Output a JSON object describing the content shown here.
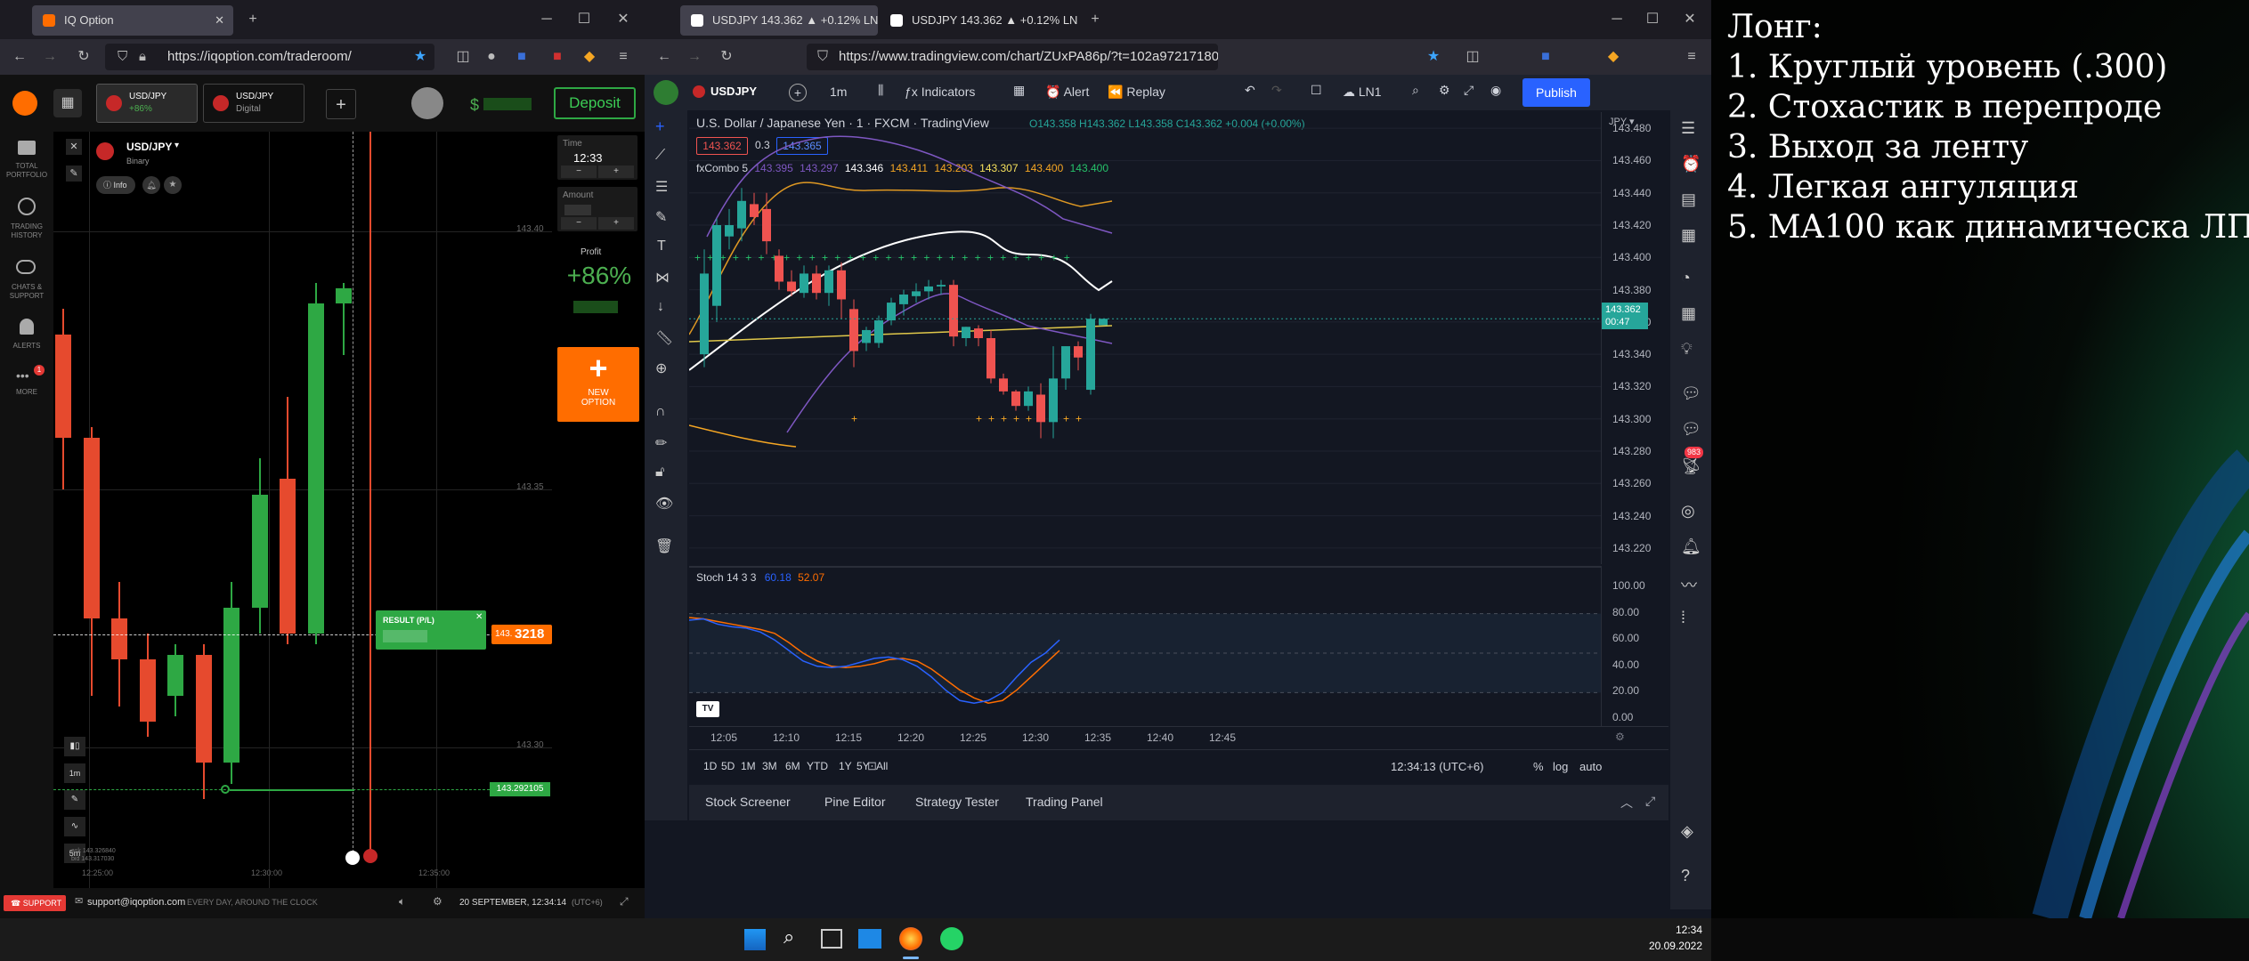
{
  "iq_window": {
    "tab_title": "IQ Option",
    "url": "https://iqoption.com/traderoom/",
    "asset_tabs": [
      {
        "name": "USD/JPY",
        "sub": "+86%"
      },
      {
        "name": "USD/JPY",
        "sub": "Digital"
      }
    ],
    "deposit_label": "Deposit",
    "sidebar": [
      {
        "label": "TOTAL PORTFOLIO",
        "icon": "briefcase-icon"
      },
      {
        "label": "TRADING HISTORY",
        "icon": "clock-icon"
      },
      {
        "label": "CHATS & SUPPORT",
        "icon": "chat-icon"
      },
      {
        "label": "ALERTS",
        "icon": "bell-icon"
      },
      {
        "label": "MORE",
        "icon": "dots-icon"
      }
    ],
    "more_badge": "1",
    "asset_title": "USD/JPY",
    "asset_type": "Binary",
    "info_label": "Info",
    "time_label": "Time",
    "time_value": "12:33",
    "amount_label": "Amount",
    "profit_label": "Profit",
    "profit_value": "+86%",
    "new_option_label": "NEW OPTION",
    "price_labels": [
      "143.40",
      "143.35",
      "143.30"
    ],
    "current_price_prefix": "143.",
    "current_price_big": "3218",
    "result_label": "RESULT (P/L)",
    "green_line_price": "143.292105",
    "ask_text": "ask 143.326840",
    "bid_text": "bid 143.317030",
    "time_axis": [
      "12:25:00",
      "12:30:00",
      "12:35:00"
    ],
    "timeframes": [
      "1m",
      "5m"
    ],
    "footer": {
      "support_label": "SUPPORT",
      "email": "support@iqoption.com",
      "slogan": "EVERY DAY, AROUND THE CLOCK",
      "datetime": "20 SEPTEMBER, 12:34:14",
      "tz": "(UTC+6)"
    },
    "candles": [
      {
        "o": 143.38,
        "h": 143.385,
        "l": 143.35,
        "c": 143.36
      },
      {
        "o": 143.36,
        "h": 143.362,
        "l": 143.31,
        "c": 143.325
      },
      {
        "o": 143.325,
        "h": 143.332,
        "l": 143.308,
        "c": 143.317
      },
      {
        "o": 143.317,
        "h": 143.322,
        "l": 143.302,
        "c": 143.305
      },
      {
        "o": 143.31,
        "h": 143.32,
        "l": 143.306,
        "c": 143.318
      },
      {
        "o": 143.318,
        "h": 143.32,
        "l": 143.29,
        "c": 143.297
      },
      {
        "o": 143.297,
        "h": 143.332,
        "l": 143.293,
        "c": 143.327
      },
      {
        "o": 143.327,
        "h": 143.356,
        "l": 143.322,
        "c": 143.349
      },
      {
        "o": 143.352,
        "h": 143.368,
        "l": 143.32,
        "c": 143.322
      },
      {
        "o": 143.322,
        "h": 143.39,
        "l": 143.32,
        "c": 143.386
      },
      {
        "o": 143.386,
        "h": 143.39,
        "l": 143.376,
        "c": 143.389
      }
    ]
  },
  "tv_window": {
    "tabs": [
      "USDJPY 143.362 ▲ +0.12% LN1",
      "USDJPY 143.362 ▲ +0.12% LN1"
    ],
    "url": "https://www.tradingview.com/chart/ZUxPA86p/?t=102a9721718050961f4fd03637f4d3%3Foffer_...",
    "symbol": "USDJPY",
    "interval": "1m",
    "indicators_label": "Indicators",
    "alert_label": "Alert",
    "replay_label": "Replay",
    "layout_label": "LN1",
    "publish_label": "Publish",
    "title": "U.S. Dollar / Japanese Yen · 1 · FXCM · TradingView",
    "ohlc": "O143.358 H143.362 L143.358 C143.362 +0.004 (+0.00%)",
    "bid": "143.362",
    "spread": "0.3",
    "ask": "143.365",
    "fxcombo_name": "fxCombo 5",
    "fxcombo_values": [
      "143.395",
      "143.297",
      "143.346",
      "143.411",
      "143.203",
      "143.307",
      "143.400",
      "143.400"
    ],
    "fxcombo_colors": [
      "#7e57c2",
      "#7e57c2",
      "#ffffff",
      "#f5a623",
      "#f5a623",
      "#f5e05c",
      "#f5a623",
      "#26c26a"
    ],
    "currency": "JPY",
    "price_axis": [
      "143.480",
      "143.460",
      "143.440",
      "143.420",
      "143.400",
      "143.380",
      "143.360",
      "143.340",
      "143.320",
      "143.300",
      "143.280",
      "143.260",
      "143.240",
      "143.220"
    ],
    "last_price": "143.362",
    "countdown": "00:47",
    "stoch_label": "Stoch 14 3 3",
    "stoch_k": "60.18",
    "stoch_d": "52.07",
    "stoch_axis": [
      "100.00",
      "80.00",
      "60.00",
      "40.00",
      "20.00",
      "0.00"
    ],
    "time_axis": [
      "12:05",
      "12:10",
      "12:15",
      "12:20",
      "12:25",
      "12:30",
      "12:35",
      "12:40",
      "12:45"
    ],
    "ranges": [
      "1D",
      "5D",
      "1M",
      "3M",
      "6M",
      "YTD",
      "1Y",
      "5Y",
      "All"
    ],
    "clock": "12:34:13 (UTC+6)",
    "scale_opts": [
      "%",
      "log",
      "auto"
    ],
    "bottom_tabs": [
      "Stock Screener",
      "Pine Editor",
      "Strategy Tester",
      "Trading Panel"
    ],
    "alerts_badge": "983",
    "chart_data": {
      "type": "candlestick",
      "x_labels": [
        "12:05",
        "12:10",
        "12:15",
        "12:20",
        "12:25",
        "12:30"
      ],
      "ylim": [
        143.21,
        143.49
      ],
      "candles": [
        {
          "o": 143.34,
          "h": 143.405,
          "l": 143.332,
          "c": 143.39
        },
        {
          "o": 143.37,
          "h": 143.424,
          "l": 143.36,
          "c": 143.42
        },
        {
          "o": 143.413,
          "h": 143.43,
          "l": 143.405,
          "c": 143.42
        },
        {
          "o": 143.418,
          "h": 143.443,
          "l": 143.41,
          "c": 143.435
        },
        {
          "o": 143.433,
          "h": 143.44,
          "l": 143.42,
          "c": 143.425
        },
        {
          "o": 143.43,
          "h": 143.44,
          "l": 143.402,
          "c": 143.41
        },
        {
          "o": 143.401,
          "h": 143.405,
          "l": 143.38,
          "c": 143.385
        },
        {
          "o": 143.385,
          "h": 143.392,
          "l": 143.376,
          "c": 143.379
        },
        {
          "o": 143.378,
          "h": 143.395,
          "l": 143.375,
          "c": 143.39
        },
        {
          "o": 143.39,
          "h": 143.395,
          "l": 143.374,
          "c": 143.378
        },
        {
          "o": 143.378,
          "h": 143.395,
          "l": 143.37,
          "c": 143.392
        },
        {
          "o": 143.392,
          "h": 143.397,
          "l": 143.362,
          "c": 143.374
        },
        {
          "o": 143.368,
          "h": 143.374,
          "l": 143.332,
          "c": 143.342
        },
        {
          "o": 143.347,
          "h": 143.357,
          "l": 143.342,
          "c": 143.355
        },
        {
          "o": 143.347,
          "h": 143.364,
          "l": 143.344,
          "c": 143.361
        },
        {
          "o": 143.361,
          "h": 143.375,
          "l": 143.358,
          "c": 143.372
        },
        {
          "o": 143.371,
          "h": 143.38,
          "l": 143.364,
          "c": 143.377
        },
        {
          "o": 143.376,
          "h": 143.384,
          "l": 143.372,
          "c": 143.379
        },
        {
          "o": 143.379,
          "h": 143.386,
          "l": 143.374,
          "c": 143.382
        },
        {
          "o": 143.382,
          "h": 143.386,
          "l": 143.377,
          "c": 143.383
        },
        {
          "o": 143.383,
          "h": 143.386,
          "l": 143.345,
          "c": 143.351
        },
        {
          "o": 143.35,
          "h": 143.357,
          "l": 143.345,
          "c": 143.357
        },
        {
          "o": 143.356,
          "h": 143.358,
          "l": 143.345,
          "c": 143.35
        },
        {
          "o": 143.35,
          "h": 143.355,
          "l": 143.322,
          "c": 143.325
        },
        {
          "o": 143.325,
          "h": 143.328,
          "l": 143.315,
          "c": 143.317
        },
        {
          "o": 143.317,
          "h": 143.318,
          "l": 143.305,
          "c": 143.308
        },
        {
          "o": 143.308,
          "h": 143.32,
          "l": 143.305,
          "c": 143.317
        },
        {
          "o": 143.315,
          "h": 143.322,
          "l": 143.288,
          "c": 143.298
        },
        {
          "o": 143.298,
          "h": 143.345,
          "l": 143.288,
          "c": 143.325
        },
        {
          "o": 143.325,
          "h": 143.345,
          "l": 143.318,
          "c": 143.345
        },
        {
          "o": 143.345,
          "h": 143.348,
          "l": 143.33,
          "c": 143.338
        },
        {
          "o": 143.318,
          "h": 143.365,
          "l": 143.315,
          "c": 143.362
        },
        {
          "o": 143.358,
          "h": 143.362,
          "l": 143.358,
          "c": 143.362
        }
      ],
      "stoch_k": [
        75,
        76,
        72,
        70,
        69,
        66,
        60,
        52,
        44,
        40,
        39,
        40,
        43,
        46,
        47,
        45,
        40,
        32,
        22,
        14,
        12,
        14,
        20,
        32,
        43,
        50,
        60
      ],
      "stoch_d": [
        77,
        76,
        74,
        72,
        70,
        68,
        65,
        58,
        50,
        44,
        40,
        39,
        40,
        42,
        45,
        46,
        44,
        38,
        30,
        22,
        16,
        12,
        14,
        22,
        32,
        42,
        52
      ]
    }
  },
  "notes": {
    "title": "Лонг:",
    "items": [
      "1. Круглый уровень (.300)",
      "2. Стохастик в перепроде",
      "3. Выход за ленту",
      "4. Легкая ангуляция",
      "5. MA100 как динамическа ЛП"
    ]
  },
  "taskbar": {
    "time": "12:34",
    "date": "20.09.2022"
  },
  "colors": {
    "up": "#26a69a",
    "down": "#ef5350",
    "iq_up": "#2ea844",
    "iq_down": "#e64a2e",
    "accent": "#2962ff",
    "iq_orange": "#ff6d00"
  }
}
